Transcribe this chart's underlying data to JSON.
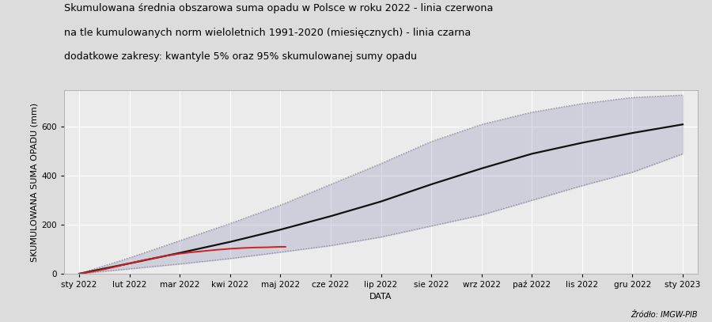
{
  "title_line1": "Skumulowana średnia obszarowa suma opadu w Polsce w roku 2022 - linia czerwona",
  "title_line2": "na tle kumulowanych norm wieloletnich 1991-2020 (miesięcznych) - linia czarna",
  "title_line3": "dodatkowe zakresy: kwantyle 5% oraz 95% skumulowanej sumy opadu",
  "ylabel": "SKUMULOWANA SUMA OPADU (mm)",
  "xlabel": "DATA",
  "attribution": "Źródło: IMGW-PIB",
  "month_labels": [
    "sty 2022",
    "lut 2022",
    "mar 2022",
    "kwi 2022",
    "maj 2022",
    "cze 2022",
    "lip 2022",
    "sie 2022",
    "wrz 2022",
    "paź 2022",
    "lis 2022",
    "gru 2022",
    "sty 2023"
  ],
  "month_x": [
    0,
    1,
    2,
    3,
    4,
    5,
    6,
    7,
    8,
    9,
    10,
    11,
    12
  ],
  "black_line": [
    0,
    42,
    85,
    130,
    180,
    235,
    295,
    365,
    430,
    490,
    535,
    575,
    610
  ],
  "q95_line": [
    0,
    65,
    135,
    205,
    280,
    365,
    450,
    540,
    610,
    660,
    695,
    720,
    730
  ],
  "q05_line": [
    0,
    20,
    40,
    62,
    88,
    115,
    150,
    195,
    240,
    300,
    360,
    415,
    490
  ],
  "red_line_x": [
    0,
    0.25,
    0.5,
    0.75,
    1.0,
    1.25,
    1.5,
    1.75,
    2.0,
    2.25,
    2.5,
    2.75,
    3.0,
    3.25,
    3.5,
    3.75,
    4.0,
    4.1
  ],
  "red_line_y": [
    0,
    8,
    18,
    30,
    42,
    54,
    64,
    74,
    82,
    88,
    93,
    98,
    102,
    105,
    107,
    108,
    110,
    110
  ],
  "ylim": [
    0,
    750
  ],
  "xlim": [
    -0.3,
    12.3
  ],
  "bg_color": "#dcdcdc",
  "plot_bg": "#ebebeb",
  "black_color": "#111111",
  "red_color": "#cc2222",
  "band_fill_color": "#9090b8",
  "band_alpha": 0.3,
  "dotted_color": "#888888",
  "grid_color": "#ffffff",
  "title_fontsize": 9.2,
  "subtitle_fontsize": 9.2,
  "sub2_fontsize": 9.0,
  "axis_label_fontsize": 8,
  "tick_fontsize": 7.5,
  "yticks": [
    0,
    200,
    400,
    600
  ]
}
